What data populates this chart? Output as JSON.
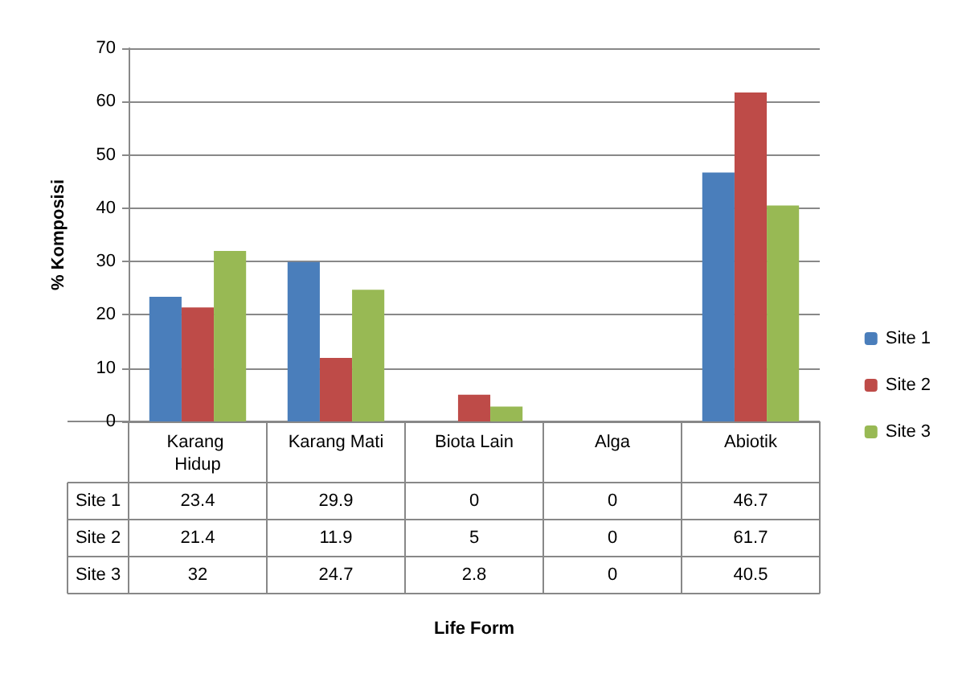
{
  "chart_data": {
    "type": "bar",
    "categories": [
      "Karang Hidup",
      "Karang Mati",
      "Biota Lain",
      "Alga",
      "Abiotik"
    ],
    "series": [
      {
        "name": "Site 1",
        "color": "#4a7ebb",
        "values": [
          23.4,
          29.9,
          0,
          0,
          46.7
        ]
      },
      {
        "name": "Site 2",
        "color": "#be4b48",
        "values": [
          21.4,
          11.9,
          5,
          0,
          61.7
        ]
      },
      {
        "name": "Site 3",
        "color": "#98b954",
        "values": [
          32,
          24.7,
          2.8,
          0,
          40.5
        ]
      }
    ],
    "ylabel": "% Komposisi",
    "annotations": [
      "Life Form"
    ],
    "ylim": [
      0,
      70
    ],
    "yticks": [
      0,
      10,
      20,
      30,
      40,
      50,
      60,
      70
    ],
    "grid": "y",
    "legend": "right",
    "data_labels": true
  }
}
